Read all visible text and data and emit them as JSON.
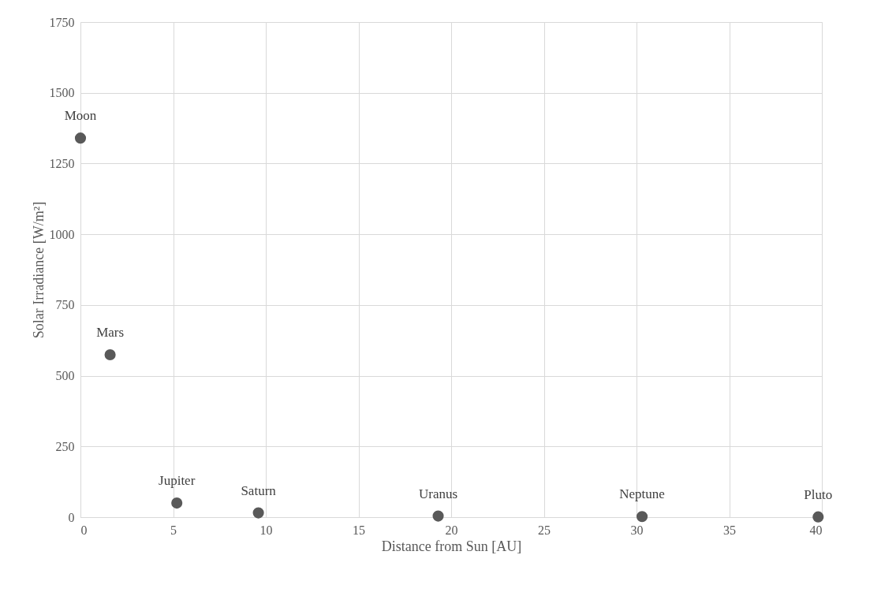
{
  "chart_data": {
    "type": "scatter",
    "xlabel": "Distance from Sun [AU]",
    "ylabel": "Solar Irradiance [W/m²]",
    "x": [
      0,
      1.6,
      5.2,
      9.6,
      19.3,
      30.3,
      39.8
    ],
    "series": [
      {
        "color": "#595959",
        "values": [
          1340,
          574,
          50,
          15,
          4,
          2,
          1
        ]
      }
    ],
    "annotations": [
      {
        "text": "Moon",
        "x": 0,
        "y": 1340
      },
      {
        "text": "Mars",
        "x": 1.6,
        "y": 574
      },
      {
        "text": "Jupiter",
        "x": 5.2,
        "y": 50
      },
      {
        "text": "Saturn",
        "x": 9.6,
        "y": 15
      },
      {
        "text": "Uranus",
        "x": 19.3,
        "y": 4
      },
      {
        "text": "Neptune",
        "x": 30.3,
        "y": 2
      },
      {
        "text": "Pluto",
        "x": 39.8,
        "y": 1
      }
    ],
    "xlim": [
      0,
      40
    ],
    "xticks": [
      0,
      5,
      10,
      15,
      20,
      25,
      30,
      35,
      40
    ],
    "ylim": [
      0,
      1750
    ],
    "yticks": [
      0,
      250,
      500,
      750,
      1000,
      1250,
      1500,
      1750
    ],
    "grid": true,
    "marker": "circle"
  }
}
